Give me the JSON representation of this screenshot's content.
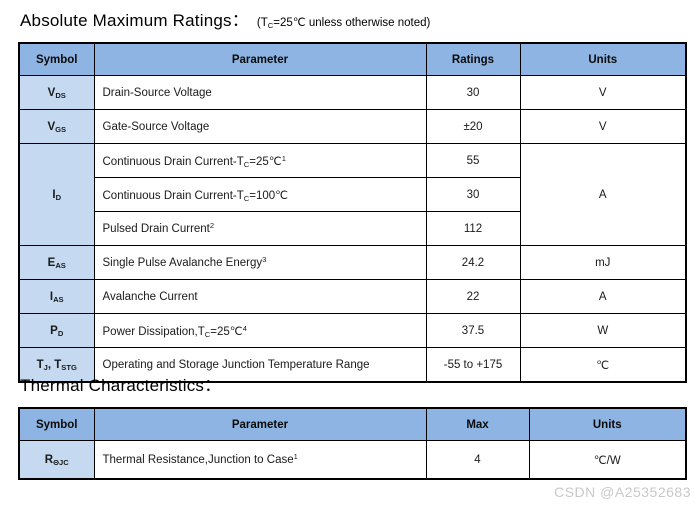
{
  "colors": {
    "header_bg": "#8db4e2",
    "symbol_col_bg": "#c5d9f1",
    "border": "#000000",
    "watermark_text": "#c9c9c9"
  },
  "abs_max": {
    "title": "Absolute Maximum Ratings：",
    "note": [
      "(T",
      {
        "sub": "C"
      },
      "=25℃  unless otherwise noted)"
    ],
    "headers": [
      "Symbol",
      "Parameter",
      "Ratings",
      "Units"
    ],
    "rows": [
      {
        "symbol": [
          "V",
          {
            "sub": "DS"
          }
        ],
        "parameter": [
          "Drain-Source Voltage"
        ],
        "rating": "30",
        "units": "V"
      },
      {
        "symbol": [
          "V",
          {
            "sub": "GS"
          }
        ],
        "parameter": [
          "Gate-Source Voltage"
        ],
        "rating": "±20",
        "units": "V"
      },
      {
        "symbol": [
          "I",
          {
            "sub": "D"
          }
        ],
        "parameter": [
          "Continuous Drain Current-T",
          {
            "sub": "C"
          },
          "=25℃",
          {
            "sup": "1"
          }
        ],
        "rating": "55",
        "units": "A"
      },
      {
        "parameter": [
          "Continuous Drain Current-T",
          {
            "sub": "C"
          },
          "=100℃"
        ],
        "rating": "30"
      },
      {
        "parameter": [
          "Pulsed Drain Current",
          {
            "sup": "2"
          }
        ],
        "rating": "112"
      },
      {
        "symbol": [
          "E",
          {
            "sub": "AS"
          }
        ],
        "parameter": [
          "Single Pulse Avalanche Energy",
          {
            "sup": "3"
          }
        ],
        "rating": "24.2",
        "units": "mJ"
      },
      {
        "symbol": [
          "I",
          {
            "sub": "AS"
          }
        ],
        "parameter": [
          "Avalanche Current"
        ],
        "rating": "22",
        "units": "A"
      },
      {
        "symbol": [
          "P",
          {
            "sub": "D"
          }
        ],
        "parameter": [
          "Power Dissipation,T",
          {
            "sub": "C"
          },
          "=25℃",
          {
            "sup": "4"
          }
        ],
        "rating": "37.5",
        "units": "W"
      },
      {
        "symbol": [
          "T",
          {
            "sub": "J"
          },
          ", T",
          {
            "sub": "STG"
          }
        ],
        "parameter": [
          "Operating and Storage Junction Temperature Range"
        ],
        "rating": "-55 to +175",
        "units": "℃"
      }
    ]
  },
  "thermal": {
    "title": "Thermal Characteristics：",
    "headers": [
      "Symbol",
      "Parameter",
      "Max",
      "Units"
    ],
    "rows": [
      {
        "symbol": [
          "R",
          {
            "sub": "ΘJC"
          }
        ],
        "parameter": [
          "Thermal Resistance,Junction to Case",
          {
            "sup": "1"
          }
        ],
        "max": "4",
        "units": "℃/W"
      }
    ]
  },
  "watermark": {
    "text": "CSDN @A25352683"
  }
}
